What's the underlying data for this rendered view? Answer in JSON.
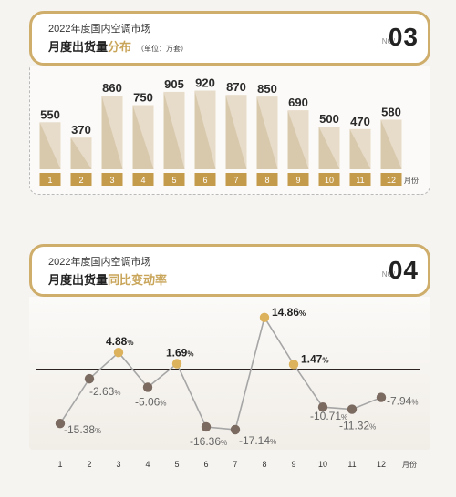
{
  "panel1": {
    "subtitle": "2022年度国内空调市场",
    "title_main": "月度出货量",
    "title_accent": "分布",
    "title_unit": "（单位：万套）",
    "no_label": "NO/",
    "no_value": "03"
  },
  "panel2": {
    "subtitle": "2022年度国内空调市场",
    "title_main": "月度出货量",
    "title_accent": "同比变动率",
    "no_label": "NO/",
    "no_value": "04"
  },
  "colors": {
    "gold": "#cfae6c",
    "bar_light": "#e7dcc9",
    "bar_shade": "#d8c9ad",
    "label_gold": "#c49b4b",
    "dot_brown": "#7a6a60",
    "dot_gold": "#dcb25c",
    "line_gray": "#a6a6a6",
    "zero_line": "#2c2320"
  },
  "chart_data": [
    {
      "type": "bar",
      "categories": [
        "1",
        "2",
        "3",
        "4",
        "5",
        "6",
        "7",
        "8",
        "9",
        "10",
        "11",
        "12"
      ],
      "values": [
        550,
        370,
        860,
        750,
        905,
        920,
        870,
        850,
        690,
        500,
        470,
        580
      ],
      "value_labels": [
        "550",
        "370",
        "860",
        "750",
        "905",
        "920",
        "870",
        "850",
        "690",
        "500",
        "470",
        "580"
      ],
      "xlabel": "月份",
      "ylim": [
        0,
        1000
      ]
    },
    {
      "type": "line",
      "categories": [
        "1",
        "2",
        "3",
        "4",
        "5",
        "6",
        "7",
        "8",
        "9",
        "10",
        "11",
        "12"
      ],
      "values": [
        -15.38,
        -2.63,
        4.88,
        -5.06,
        1.69,
        -16.36,
        -17.14,
        14.86,
        1.47,
        -10.71,
        -11.32,
        -7.94
      ],
      "value_labels": [
        "-15.38",
        "-2.63",
        "4.88",
        "-5.06",
        "1.69",
        "-16.36",
        "-17.14",
        "14.86",
        "1.47",
        "-10.71",
        "-11.32",
        "-7.94"
      ],
      "unit": "%",
      "xlabel": "月份",
      "ylim": [
        -20,
        17
      ]
    }
  ]
}
